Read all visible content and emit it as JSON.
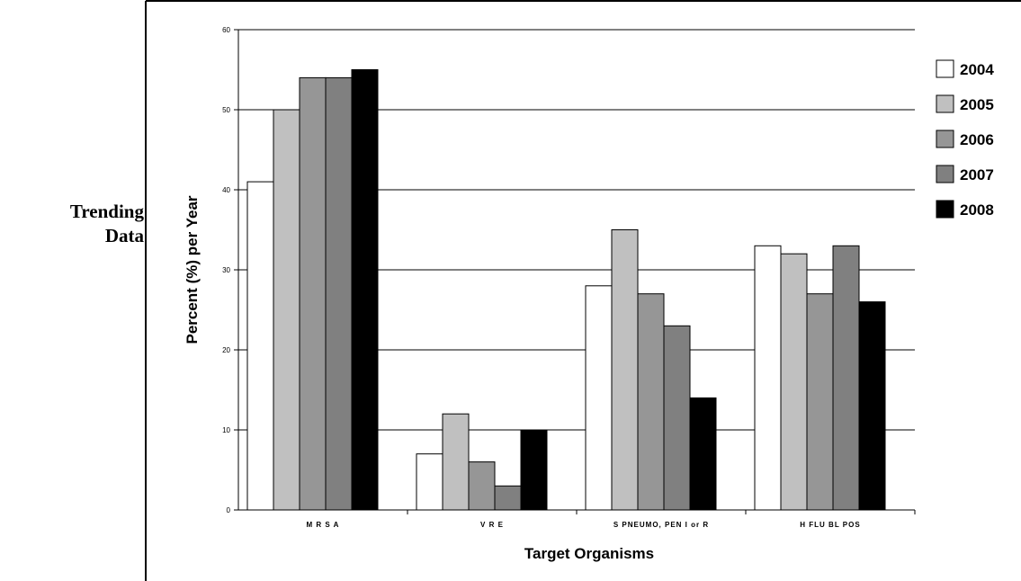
{
  "side_label": {
    "line1": "Trending",
    "line2": "Data"
  },
  "chart_data": {
    "type": "bar",
    "title": "",
    "xlabel": "Target Organisms",
    "ylabel": "Percent (%) per Year",
    "ylim": [
      0,
      60
    ],
    "yticks": [
      0,
      10,
      20,
      30,
      40,
      50,
      60
    ],
    "grid": true,
    "legend_position": "right",
    "categories": [
      "M R S A",
      "V R E",
      "S  PNEUMO,  PEN  I or R",
      "H  FLU  BL  POS"
    ],
    "series": [
      {
        "name": "2004",
        "color": "#ffffff",
        "values": [
          41,
          7,
          28,
          33
        ]
      },
      {
        "name": "2005",
        "color": "#c0c0c0",
        "values": [
          50,
          12,
          35,
          32
        ]
      },
      {
        "name": "2006",
        "color": "#969696",
        "values": [
          54,
          6,
          27,
          27
        ]
      },
      {
        "name": "2007",
        "color": "#808080",
        "values": [
          54,
          3,
          23,
          33
        ]
      },
      {
        "name": "2008",
        "color": "#000000",
        "values": [
          55,
          10,
          14,
          26
        ]
      }
    ]
  }
}
